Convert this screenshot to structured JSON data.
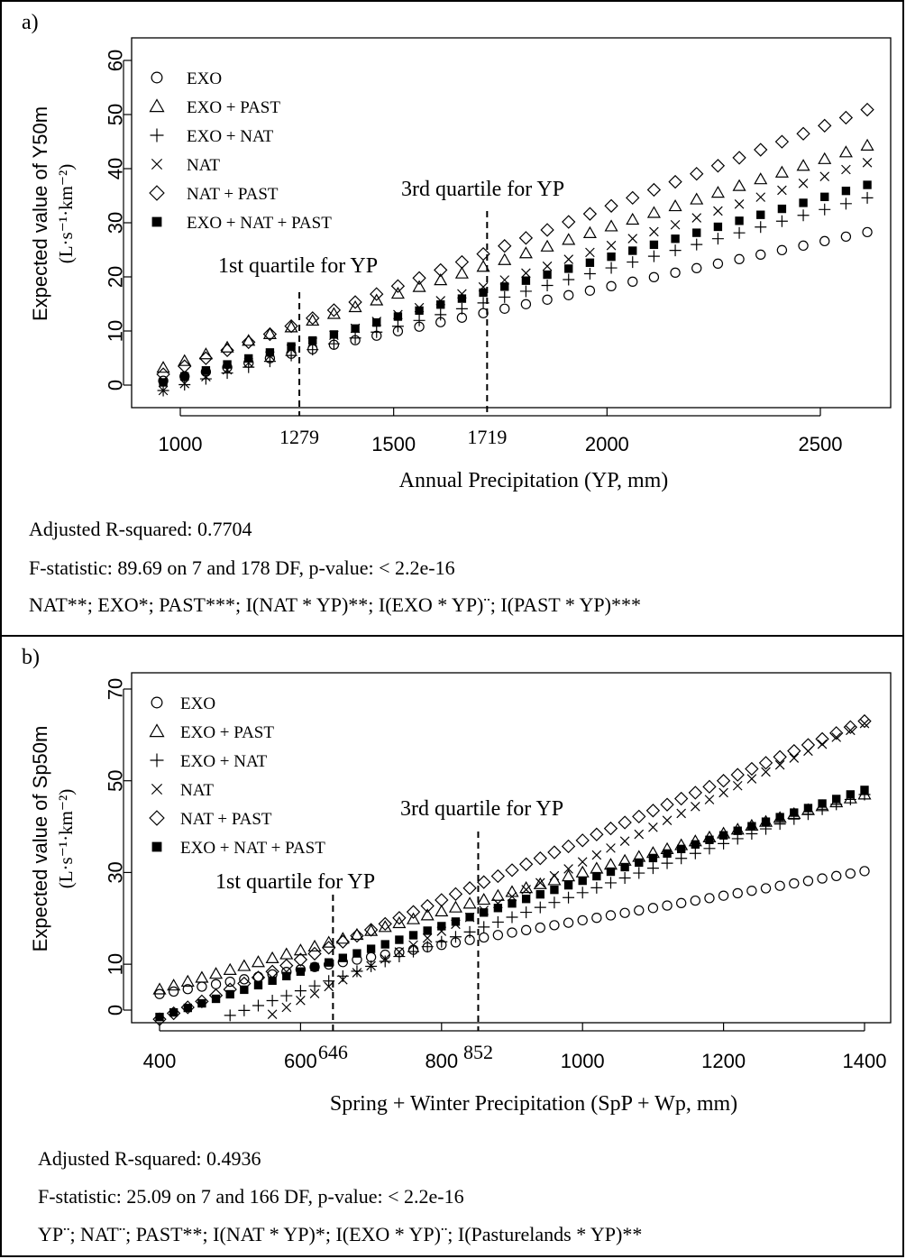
{
  "panels": {
    "a": {
      "label": "a)",
      "stats": [
        "Adjusted R-squared:  0.7704",
        "F-statistic: 89.69 on 7 and 178 DF,  p-value: < 2.2e-16",
        "NAT**; EXO*; PAST***; I(NAT * YP)**; I(EXO * YP)¨; I(PAST * YP)***"
      ]
    },
    "b": {
      "label": "b)",
      "stats": [
        "Adjusted R-squared:  0.4936",
        "F-statistic: 25.09 on 7 and 166 DF,  p-value: < 2.2e-16",
        "YP¨; NAT¨; PAST**; I(NAT * YP)*; I(EXO * YP)¨; I(Pasturelands * YP)**"
      ]
    }
  },
  "chart_data": [
    {
      "type": "scatter",
      "title": "",
      "xlabel": "Annual Precipitation (YP, mm)",
      "ylabel": "Expected value of Y50m",
      "ylabel_units": "(L·s⁻¹·km⁻²)",
      "xlim": [
        900,
        2650
      ],
      "ylim": [
        -2,
        62
      ],
      "xticks": [
        1000,
        1500,
        2000,
        2500
      ],
      "yticks": [
        0,
        10,
        20,
        30,
        40,
        50,
        60
      ],
      "grid": false,
      "legend": "top-left",
      "x_start": 960,
      "x_end": 2610,
      "x_step": 50,
      "series": [
        {
          "name": "EXO",
          "marker": "circle",
          "y0": 0.8,
          "slope": 0.01665
        },
        {
          "name": "EXO + PAST",
          "marker": "triangle",
          "y0": 3.2,
          "slope": 0.02488
        },
        {
          "name": "EXO + NAT",
          "marker": "plus",
          "y0": -1.0,
          "slope": 0.02158
        },
        {
          "name": "NAT",
          "marker": "x",
          "y0": -1.0,
          "slope": 0.02552
        },
        {
          "name": "NAT + PAST",
          "marker": "diamond",
          "y0": 2.0,
          "slope": 0.02964
        },
        {
          "name": "EXO + NAT + PAST",
          "marker": "square",
          "y0": 0.5,
          "slope": 0.02212
        }
      ],
      "annotations": [
        {
          "text": "1st quartile for YP",
          "x": 1279,
          "tick": "1279"
        },
        {
          "text": "3rd quartile for YP",
          "x": 1719,
          "tick": "1719"
        }
      ]
    },
    {
      "type": "scatter",
      "title": "",
      "xlabel": "Spring + Winter Precipitation (SpP + Wp, mm)",
      "ylabel": "Expected value of Sp50m",
      "ylabel_units": "(L·s⁻¹·km⁻²)",
      "xlim": [
        380,
        1425
      ],
      "ylim": [
        -2,
        72
      ],
      "xticks": [
        400,
        600,
        800,
        1000,
        1200,
        1400
      ],
      "yticks": [
        0,
        10,
        30,
        50,
        70
      ],
      "grid": false,
      "legend": "top-left",
      "x_start": 400,
      "x_end": 1400,
      "x_step": 20,
      "series": [
        {
          "name": "EXO",
          "marker": "circle",
          "y0": 3.5,
          "slope": 0.0268
        },
        {
          "name": "EXO + PAST",
          "marker": "triangle",
          "y0": 4.5,
          "slope": 0.0425
        },
        {
          "name": "EXO + NAT",
          "marker": "plus",
          "y0": -6.5,
          "slope": 0.0535
        },
        {
          "name": "NAT",
          "marker": "x",
          "y0": -13.0,
          "slope": 0.0755
        },
        {
          "name": "NAT + PAST",
          "marker": "diamond",
          "y0": -2.0,
          "slope": 0.065
        },
        {
          "name": "EXO + NAT + PAST",
          "marker": "square",
          "y0": -1.5,
          "slope": 0.0495
        }
      ],
      "annotations": [
        {
          "text": "1st quartile for YP",
          "x": 646,
          "tick": "646"
        },
        {
          "text": "3rd quartile for YP",
          "x": 852,
          "tick": "852"
        }
      ]
    }
  ]
}
